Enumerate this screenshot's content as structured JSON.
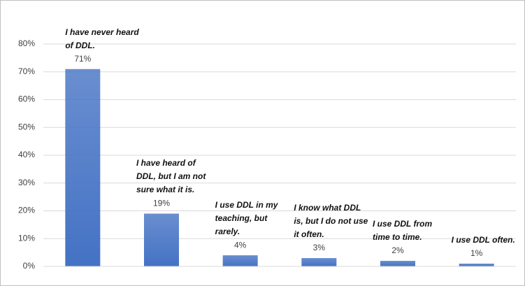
{
  "chart_data": {
    "type": "bar",
    "categories": [
      "I have never heard of DDL.",
      "I have heard of DDL, but I am not sure what it is.",
      "I use DDL in my teaching, but rarely.",
      "I know what DDL is, but I do not use it often.",
      "I use DDL from time to time.",
      "I use DDL often."
    ],
    "values": [
      71,
      19,
      4,
      3,
      2,
      1
    ],
    "value_labels": [
      "71%",
      "19%",
      "4%",
      "3%",
      "2%",
      "1%"
    ],
    "color": "#4472c4",
    "ylim": [
      0,
      80
    ],
    "yticks": [
      {
        "value": 0,
        "label": "0%"
      },
      {
        "value": 10,
        "label": "10%"
      },
      {
        "value": 20,
        "label": "20%"
      },
      {
        "value": 30,
        "label": "30%"
      },
      {
        "value": 40,
        "label": "40%"
      },
      {
        "value": 50,
        "label": "50%"
      },
      {
        "value": 60,
        "label": "60%"
      },
      {
        "value": 70,
        "label": "70%"
      },
      {
        "value": 80,
        "label": "80%"
      }
    ],
    "grid": true
  }
}
